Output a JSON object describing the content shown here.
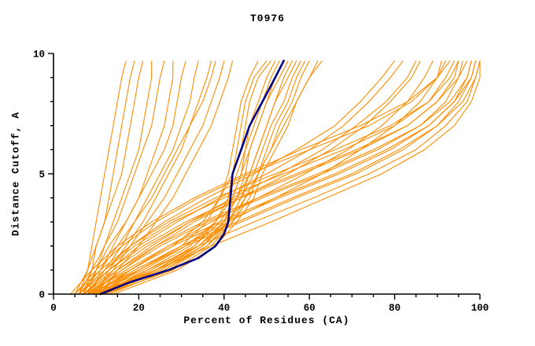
{
  "chart_data": {
    "type": "line",
    "title": "T0976",
    "xlabel": "Percent of Residues (CA)",
    "ylabel": "Distance Cutoff, A",
    "xlim": [
      0,
      100
    ],
    "ylim": [
      0,
      10
    ],
    "xticks": [
      0,
      20,
      40,
      60,
      80,
      100
    ],
    "yticks": [
      0,
      5,
      10
    ],
    "x_minor_step": 5,
    "y_minor_step": 1,
    "grid": false,
    "legend": false,
    "model_color": "#ff8c00",
    "highlight_color": "#000080",
    "axis_color": "#000000",
    "background_color": "#ffffff",
    "y_grid": [
      0,
      1,
      2,
      3,
      4,
      5,
      6,
      7,
      8,
      9,
      9.7
    ],
    "models_x": [
      [
        6,
        8,
        9,
        10,
        11,
        12,
        13,
        14,
        15,
        16,
        17
      ],
      [
        7,
        9,
        10,
        12,
        13,
        14,
        15,
        16,
        17,
        18,
        19
      ],
      [
        5,
        8,
        10,
        12,
        14,
        16,
        17,
        18,
        19,
        20,
        21
      ],
      [
        8,
        10,
        12,
        14,
        16,
        18,
        20,
        21,
        22,
        23,
        23
      ],
      [
        6,
        9,
        12,
        15,
        17,
        19,
        21,
        23,
        24,
        25,
        26
      ],
      [
        9,
        11,
        14,
        17,
        20,
        22,
        24,
        26,
        27,
        28,
        28
      ],
      [
        7,
        10,
        13,
        17,
        20,
        23,
        26,
        28,
        29,
        30,
        31
      ],
      [
        8,
        12,
        16,
        19,
        22,
        25,
        28,
        30,
        32,
        33,
        34
      ],
      [
        10,
        13,
        17,
        21,
        24,
        27,
        30,
        32,
        34,
        36,
        37
      ],
      [
        6,
        11,
        15,
        19,
        23,
        26,
        29,
        32,
        35,
        37,
        38
      ],
      [
        9,
        14,
        18,
        22,
        26,
        29,
        32,
        35,
        37,
        39,
        40
      ],
      [
        11,
        15,
        20,
        24,
        28,
        31,
        34,
        37,
        39,
        41,
        42
      ],
      [
        8,
        20,
        30,
        36,
        39,
        41,
        42,
        43,
        44,
        46,
        48
      ],
      [
        10,
        24,
        33,
        38,
        41,
        42,
        43,
        44,
        45,
        47,
        50
      ],
      [
        7,
        18,
        28,
        35,
        39,
        42,
        44,
        45,
        46,
        48,
        51
      ],
      [
        12,
        26,
        35,
        40,
        42,
        44,
        45,
        46,
        48,
        50,
        52
      ],
      [
        9,
        22,
        32,
        38,
        41,
        43,
        45,
        47,
        49,
        51,
        53
      ],
      [
        11,
        25,
        34,
        40,
        43,
        45,
        46,
        48,
        50,
        52,
        54
      ],
      [
        8,
        21,
        31,
        38,
        42,
        44,
        46,
        48,
        50,
        53,
        55
      ],
      [
        13,
        27,
        36,
        41,
        44,
        46,
        48,
        50,
        52,
        54,
        56
      ],
      [
        10,
        23,
        33,
        39,
        43,
        46,
        48,
        50,
        52,
        55,
        57
      ],
      [
        9,
        24,
        34,
        41,
        44,
        47,
        49,
        51,
        54,
        56,
        58
      ],
      [
        12,
        28,
        37,
        42,
        45,
        48,
        50,
        52,
        55,
        57,
        59
      ],
      [
        11,
        26,
        36,
        42,
        46,
        48,
        51,
        53,
        56,
        58,
        60
      ],
      [
        14,
        29,
        38,
        43,
        47,
        49,
        52,
        55,
        57,
        60,
        62
      ],
      [
        10,
        25,
        35,
        41,
        45,
        48,
        51,
        54,
        57,
        60,
        63
      ],
      [
        7,
        13,
        20,
        29,
        39,
        50,
        60,
        68,
        74,
        79,
        82
      ],
      [
        9,
        16,
        24,
        33,
        44,
        55,
        65,
        73,
        79,
        84,
        86
      ],
      [
        6,
        12,
        18,
        26,
        36,
        47,
        57,
        66,
        72,
        77,
        80
      ],
      [
        10,
        18,
        27,
        37,
        48,
        59,
        69,
        77,
        83,
        87,
        89
      ],
      [
        8,
        15,
        23,
        32,
        42,
        53,
        63,
        71,
        78,
        83,
        85
      ],
      [
        11,
        20,
        30,
        41,
        52,
        63,
        72,
        80,
        86,
        90,
        91
      ],
      [
        5,
        10,
        16,
        24,
        34,
        46,
        60,
        74,
        84,
        90,
        92
      ],
      [
        6,
        12,
        19,
        28,
        40,
        54,
        68,
        80,
        88,
        92,
        94
      ],
      [
        4,
        9,
        15,
        23,
        33,
        45,
        58,
        72,
        83,
        90,
        93
      ],
      [
        7,
        14,
        22,
        32,
        44,
        58,
        72,
        83,
        90,
        94,
        95
      ],
      [
        5,
        11,
        18,
        27,
        38,
        52,
        66,
        79,
        88,
        93,
        95
      ],
      [
        8,
        16,
        25,
        36,
        49,
        63,
        76,
        86,
        92,
        95,
        96
      ],
      [
        6,
        13,
        21,
        31,
        43,
        57,
        71,
        83,
        90,
        95,
        97
      ],
      [
        9,
        18,
        28,
        40,
        53,
        67,
        79,
        88,
        94,
        97,
        98
      ],
      [
        7,
        15,
        24,
        35,
        48,
        62,
        75,
        86,
        93,
        97,
        98
      ],
      [
        10,
        20,
        31,
        44,
        57,
        71,
        82,
        90,
        95,
        98,
        99
      ],
      [
        8,
        17,
        27,
        39,
        52,
        66,
        78,
        88,
        94,
        98,
        99
      ],
      [
        11,
        22,
        34,
        47,
        61,
        74,
        85,
        92,
        97,
        99,
        100
      ],
      [
        9,
        19,
        30,
        43,
        56,
        70,
        81,
        90,
        96,
        99,
        100
      ],
      [
        12,
        24,
        37,
        51,
        64,
        77,
        87,
        94,
        98,
        100,
        100
      ]
    ],
    "highlight": {
      "y": [
        0,
        0.5,
        1,
        1.5,
        2,
        2.5,
        3,
        4,
        5,
        6,
        6.5,
        7,
        7.5,
        8,
        9,
        9.7
      ],
      "x": [
        11,
        18,
        27,
        34,
        38,
        40,
        41,
        41.5,
        42,
        44,
        45,
        46,
        47.5,
        49,
        52,
        54
      ]
    }
  }
}
